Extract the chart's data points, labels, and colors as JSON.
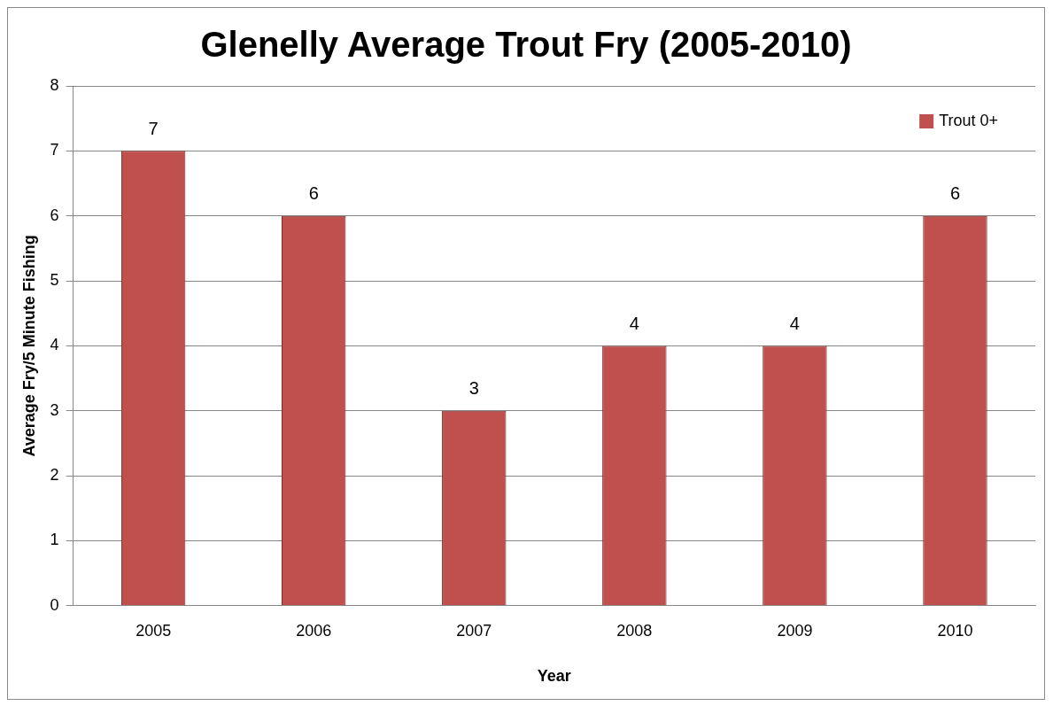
{
  "chart_data": {
    "type": "bar",
    "title": "Glenelly Average Trout Fry (2005-2010)",
    "xlabel": "Year",
    "ylabel": "Average Fry/5 Minute Fishing",
    "categories": [
      "2005",
      "2006",
      "2007",
      "2008",
      "2009",
      "2010"
    ],
    "series": [
      {
        "name": "Trout 0+",
        "color": "#c0504d",
        "values": [
          7,
          6,
          3,
          4,
          4,
          6
        ]
      }
    ],
    "ylim": [
      0,
      8
    ],
    "yticks": [
      0,
      1,
      2,
      3,
      4,
      5,
      6,
      7,
      8
    ],
    "grid": "y",
    "legend": "top right",
    "data_labels": true
  }
}
